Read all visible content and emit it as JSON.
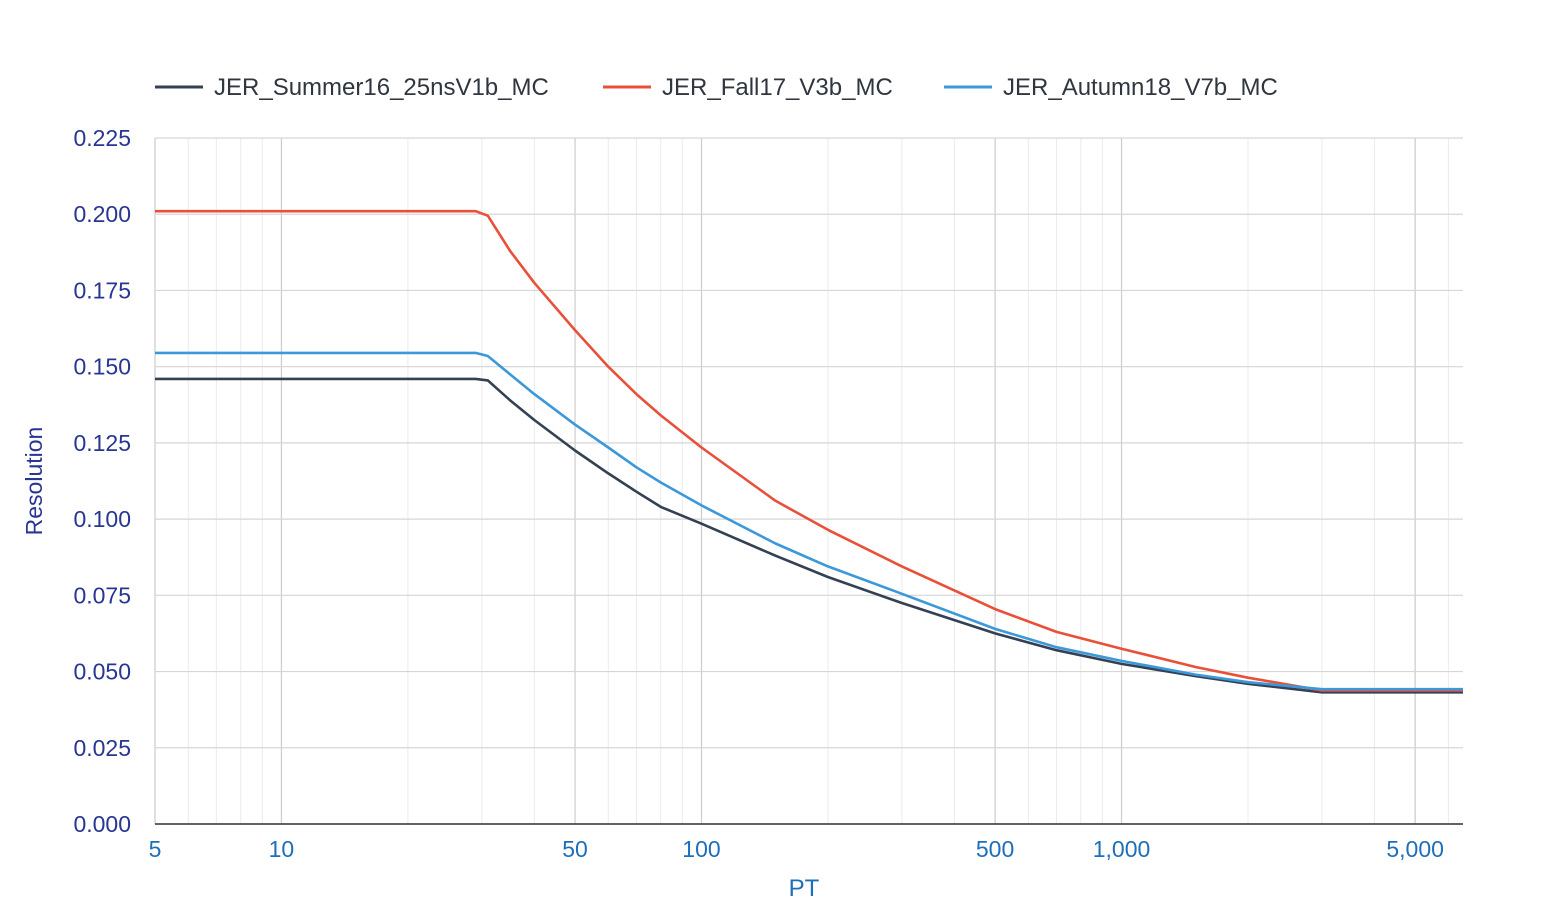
{
  "chart_data": {
    "type": "line",
    "xlabel": "PT",
    "ylabel": "Resolution",
    "xscale": "log",
    "xlim": [
      5,
      6500
    ],
    "ylim": [
      0,
      0.225
    ],
    "yticks": [
      "0.000",
      "0.025",
      "0.050",
      "0.075",
      "0.100",
      "0.125",
      "0.150",
      "0.175",
      "0.200",
      "0.225"
    ],
    "xticks": [
      {
        "value": 5,
        "label": "5"
      },
      {
        "value": 10,
        "label": "10"
      },
      {
        "value": 50,
        "label": "50"
      },
      {
        "value": 100,
        "label": "100"
      },
      {
        "value": 500,
        "label": "500"
      },
      {
        "value": 1000,
        "label": "1,000"
      },
      {
        "value": 5000,
        "label": "5,000"
      }
    ],
    "grid": true,
    "legend_position": "top-left",
    "series": [
      {
        "name": "JER_Summer16_25nsV1b_MC",
        "color": "#344153",
        "x": [
          5,
          10,
          20,
          29,
          31,
          35,
          40,
          50,
          60,
          70,
          80,
          100,
          150,
          200,
          300,
          500,
          700,
          1000,
          1500,
          2000,
          3000,
          4000,
          5000,
          6500
        ],
        "y": [
          0.146,
          0.146,
          0.146,
          0.146,
          0.1455,
          0.139,
          0.1325,
          0.1225,
          0.115,
          0.109,
          0.104,
          0.0985,
          0.088,
          0.081,
          0.0725,
          0.0625,
          0.057,
          0.0525,
          0.0485,
          0.046,
          0.0432,
          0.0432,
          0.0432,
          0.0432
        ]
      },
      {
        "name": "JER_Fall17_V3b_MC",
        "color": "#e8503a",
        "x": [
          5,
          10,
          20,
          29,
          31,
          35,
          40,
          50,
          60,
          70,
          80,
          100,
          150,
          200,
          300,
          500,
          700,
          1000,
          1500,
          2000,
          3000,
          4000,
          5000,
          6500
        ],
        "y": [
          0.201,
          0.201,
          0.201,
          0.201,
          0.1995,
          0.188,
          0.1775,
          0.162,
          0.15,
          0.141,
          0.134,
          0.1235,
          0.106,
          0.0965,
          0.0845,
          0.0705,
          0.063,
          0.0575,
          0.0515,
          0.048,
          0.0438,
          0.0438,
          0.0438,
          0.0438
        ]
      },
      {
        "name": "JER_Autumn18_V7b_MC",
        "color": "#3c98d9",
        "x": [
          5,
          10,
          20,
          29,
          31,
          35,
          40,
          50,
          60,
          70,
          80,
          100,
          150,
          200,
          300,
          500,
          700,
          1000,
          1500,
          2000,
          3000,
          4000,
          5000,
          6500
        ],
        "y": [
          0.1545,
          0.1545,
          0.1545,
          0.1545,
          0.1535,
          0.1475,
          0.141,
          0.131,
          0.1235,
          0.117,
          0.112,
          0.1045,
          0.092,
          0.0845,
          0.0755,
          0.064,
          0.058,
          0.0535,
          0.049,
          0.0465,
          0.0442,
          0.0442,
          0.0442,
          0.0442
        ]
      }
    ]
  }
}
